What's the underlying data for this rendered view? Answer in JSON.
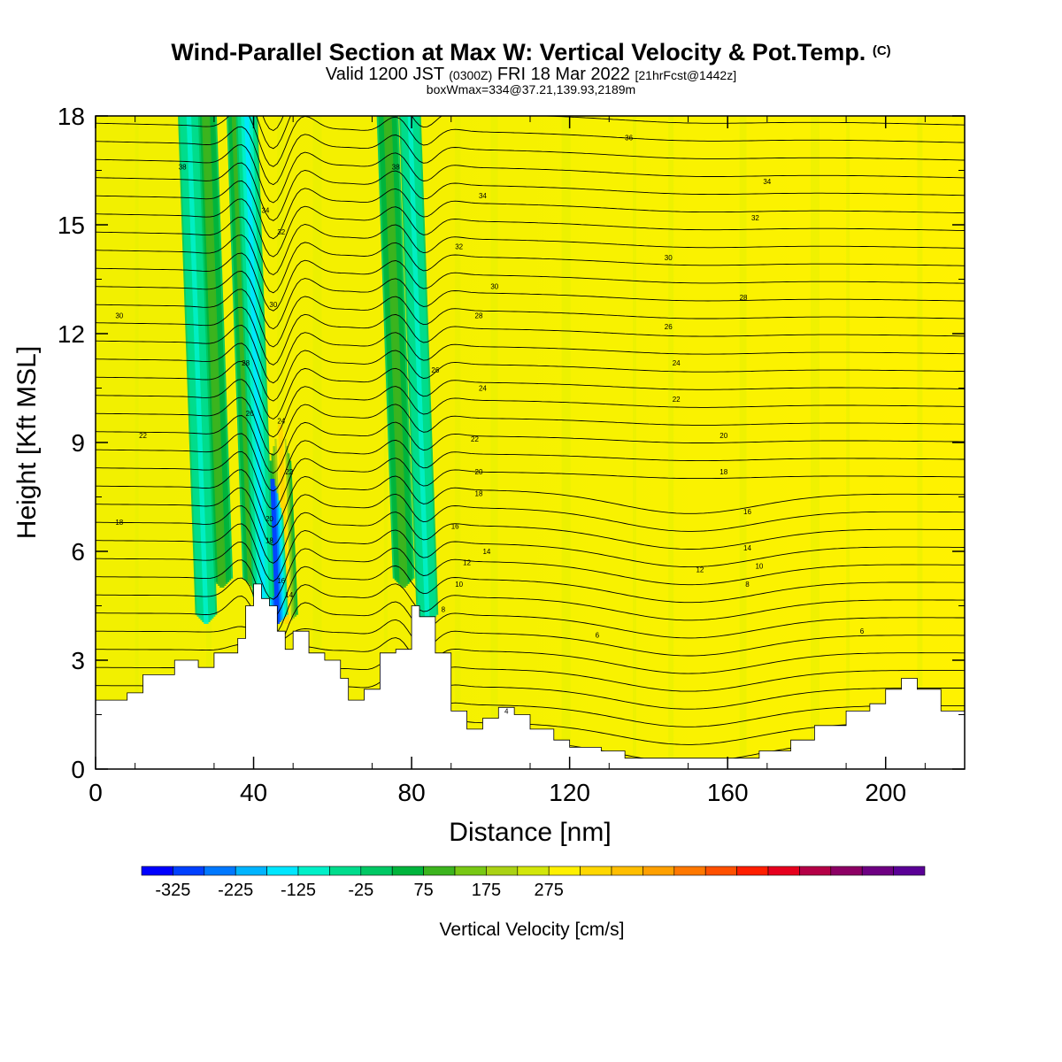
{
  "header": {
    "title_main": "Wind-Parallel Section at Max W: Vertical Velocity & Pot.Temp.",
    "title_mark": "(C)",
    "line2_a": "Valid 1200 JST",
    "line2_b": "(0300Z)",
    "line2_c": "FRI 18 Mar 2022",
    "line2_d": "[21hrFcst@1442z]",
    "line3": "boxWmax=334@37.21,139.93,2189m"
  },
  "chart_data": {
    "type": "heatmap",
    "title": "Wind-Parallel Section at Max W: Vertical Velocity & Pot.Temp.",
    "xlabel": "Distance [nm]",
    "ylabel": "Height [Kft MSL]",
    "xlim": [
      0,
      220
    ],
    "ylim": [
      0,
      18
    ],
    "x_ticks": [
      "0",
      "40",
      "80",
      "120",
      "160",
      "200"
    ],
    "y_ticks": [
      "0",
      "3",
      "6",
      "9",
      "12",
      "15",
      "18"
    ],
    "colorbar": {
      "title": "Vertical Velocity [cm/s]",
      "labels": [
        "-325",
        "-225",
        "-125",
        "-25",
        "75",
        "175",
        "275"
      ],
      "colors": [
        "#0000ff",
        "#0040ff",
        "#0078ff",
        "#00b4ff",
        "#00e6ff",
        "#00f0c8",
        "#00dc8c",
        "#00c864",
        "#00b43c",
        "#3cb41e",
        "#78c814",
        "#aad214",
        "#d2e60a",
        "#fff000",
        "#ffd700",
        "#ffbe00",
        "#ffa000",
        "#ff7800",
        "#ff5000",
        "#ff1e00",
        "#e6001e",
        "#b40046",
        "#8c0064",
        "#6e0082",
        "#5a0096"
      ]
    },
    "terrain_kft": [
      [
        0,
        1.9
      ],
      [
        8,
        2.1
      ],
      [
        12,
        2.6
      ],
      [
        20,
        3.0
      ],
      [
        26,
        2.8
      ],
      [
        30,
        3.2
      ],
      [
        36,
        3.6
      ],
      [
        38,
        4.5
      ],
      [
        40,
        5.1
      ],
      [
        42,
        4.7
      ],
      [
        44,
        4.5
      ],
      [
        46,
        3.8
      ],
      [
        48,
        3.3
      ],
      [
        50,
        3.8
      ],
      [
        54,
        3.2
      ],
      [
        58,
        3.0
      ],
      [
        62,
        2.5
      ],
      [
        64,
        1.9
      ],
      [
        68,
        2.2
      ],
      [
        72,
        3.2
      ],
      [
        76,
        3.3
      ],
      [
        80,
        4.5
      ],
      [
        82,
        4.2
      ],
      [
        86,
        3.2
      ],
      [
        90,
        1.6
      ],
      [
        94,
        1.1
      ],
      [
        98,
        1.4
      ],
      [
        102,
        1.7
      ],
      [
        106,
        1.5
      ],
      [
        110,
        1.1
      ],
      [
        116,
        0.8
      ],
      [
        120,
        0.6
      ],
      [
        128,
        0.5
      ],
      [
        134,
        0.3
      ],
      [
        150,
        0.3
      ],
      [
        168,
        0.5
      ],
      [
        176,
        0.8
      ],
      [
        182,
        1.2
      ],
      [
        190,
        1.6
      ],
      [
        196,
        1.8
      ],
      [
        200,
        2.2
      ],
      [
        204,
        2.5
      ],
      [
        208,
        2.2
      ],
      [
        214,
        1.6
      ],
      [
        220,
        1.2
      ]
    ],
    "updraft_bands": [
      {
        "x": 48.5,
        "y_bottom": 4.0,
        "y_top": 9.5,
        "w_peak": 334
      },
      {
        "x": 40,
        "y_bottom": 5.0,
        "y_top": 18,
        "w_peak": 120
      },
      {
        "x": 32,
        "y_bottom": 5.0,
        "y_top": 18,
        "w_peak": 90
      },
      {
        "x": 78,
        "y_bottom": 5.0,
        "y_top": 18,
        "w_peak": 100
      }
    ],
    "downdraft_bands": [
      {
        "x": 46,
        "y_bottom": 4.0,
        "y_top": 8.0,
        "w_min": -320
      },
      {
        "x": 42.5,
        "y_bottom": 4.5,
        "y_top": 18,
        "w_min": -150
      },
      {
        "x": 28,
        "y_bottom": 4.0,
        "y_top": 18,
        "w_min": -80
      },
      {
        "x": 84,
        "y_bottom": 4.0,
        "y_top": 18,
        "w_min": -90
      }
    ],
    "theta_contour_labels": [
      {
        "text": "38",
        "x": 22,
        "y": 16.6
      },
      {
        "text": "36",
        "x": 135,
        "y": 17.4
      },
      {
        "text": "34",
        "x": 43,
        "y": 15.4
      },
      {
        "text": "34",
        "x": 170,
        "y": 16.2
      },
      {
        "text": "38",
        "x": 76,
        "y": 16.6
      },
      {
        "text": "32",
        "x": 47,
        "y": 14.8
      },
      {
        "text": "34",
        "x": 98,
        "y": 15.8
      },
      {
        "text": "32",
        "x": 167,
        "y": 15.2
      },
      {
        "text": "32",
        "x": 92,
        "y": 14.4
      },
      {
        "text": "30",
        "x": 145,
        "y": 14.1
      },
      {
        "text": "30",
        "x": 101,
        "y": 13.3
      },
      {
        "text": "28",
        "x": 164,
        "y": 13.0
      },
      {
        "text": "30",
        "x": 45,
        "y": 12.8
      },
      {
        "text": "30",
        "x": 6,
        "y": 12.5
      },
      {
        "text": "28",
        "x": 97,
        "y": 12.5
      },
      {
        "text": "26",
        "x": 145,
        "y": 12.2
      },
      {
        "text": "28",
        "x": 38,
        "y": 11.2
      },
      {
        "text": "26",
        "x": 86,
        "y": 11.0
      },
      {
        "text": "24",
        "x": 147,
        "y": 11.2
      },
      {
        "text": "24",
        "x": 98,
        "y": 10.5
      },
      {
        "text": "22",
        "x": 147,
        "y": 10.2
      },
      {
        "text": "26",
        "x": 39,
        "y": 9.8
      },
      {
        "text": "24",
        "x": 47,
        "y": 9.6
      },
      {
        "text": "22",
        "x": 12,
        "y": 9.2
      },
      {
        "text": "22",
        "x": 96,
        "y": 9.1
      },
      {
        "text": "20",
        "x": 159,
        "y": 9.2
      },
      {
        "text": "22",
        "x": 49,
        "y": 8.2
      },
      {
        "text": "20",
        "x": 97,
        "y": 8.2
      },
      {
        "text": "18",
        "x": 159,
        "y": 8.2
      },
      {
        "text": "18",
        "x": 97,
        "y": 7.6
      },
      {
        "text": "16",
        "x": 165,
        "y": 7.1
      },
      {
        "text": "18",
        "x": 6,
        "y": 6.8
      },
      {
        "text": "20",
        "x": 44,
        "y": 6.9
      },
      {
        "text": "16",
        "x": 91,
        "y": 6.7
      },
      {
        "text": "18",
        "x": 44,
        "y": 6.3
      },
      {
        "text": "14",
        "x": 99,
        "y": 6.0
      },
      {
        "text": "14",
        "x": 165,
        "y": 6.1
      },
      {
        "text": "12",
        "x": 94,
        "y": 5.7
      },
      {
        "text": "12",
        "x": 153,
        "y": 5.5
      },
      {
        "text": "10",
        "x": 168,
        "y": 5.6
      },
      {
        "text": "16",
        "x": 47,
        "y": 5.2
      },
      {
        "text": "10",
        "x": 92,
        "y": 5.1
      },
      {
        "text": "8",
        "x": 165,
        "y": 5.1
      },
      {
        "text": "14",
        "x": 49,
        "y": 4.8
      },
      {
        "text": "8",
        "x": 88,
        "y": 4.4
      },
      {
        "text": "6",
        "x": 127,
        "y": 3.7
      },
      {
        "text": "6",
        "x": 194,
        "y": 3.8
      },
      {
        "text": "4",
        "x": 104,
        "y": 1.6
      }
    ]
  }
}
